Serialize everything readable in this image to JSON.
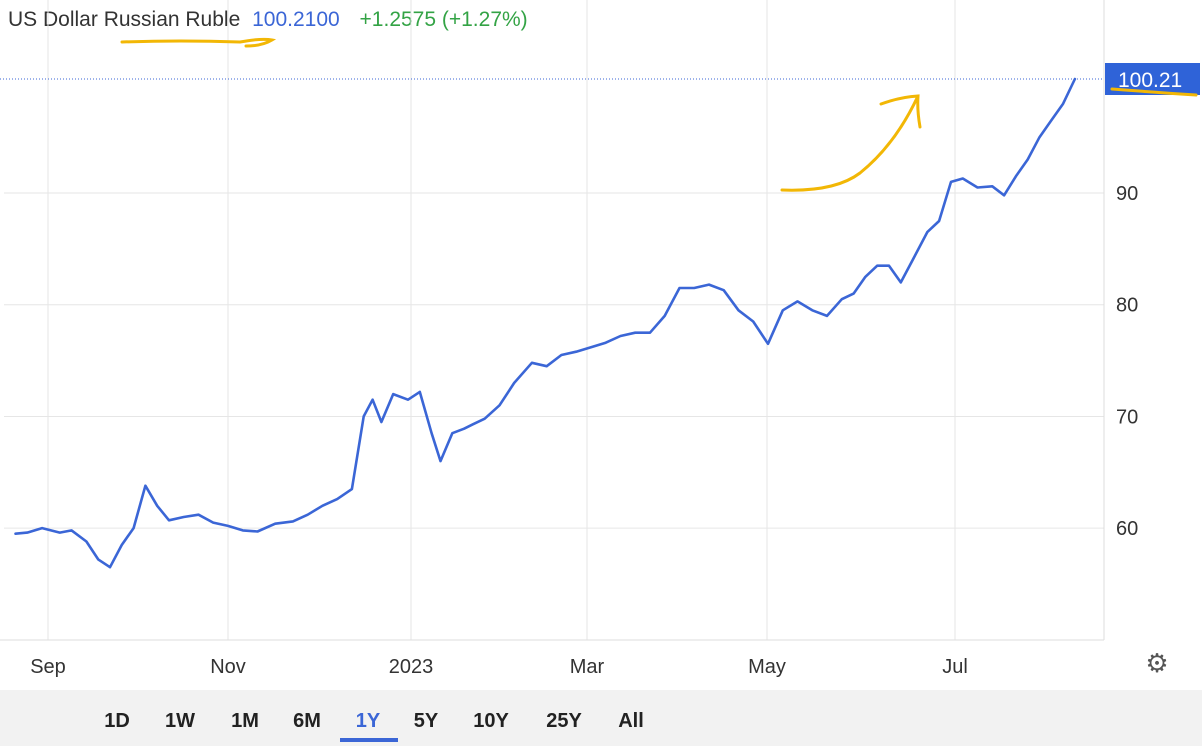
{
  "header": {
    "instrument_name": "US Dollar Russian Ruble",
    "last_price": "100.2100",
    "change": "+1.2575 (+1.27%)"
  },
  "timeframes": [
    "1D",
    "1W",
    "1M",
    "6M",
    "1Y",
    "5Y",
    "10Y",
    "25Y",
    "All"
  ],
  "active_timeframe": "1Y",
  "settings_icon": "gear-icon",
  "colors": {
    "line": "#3b66d6",
    "positive": "#33a345",
    "last_price_badge": "#2f63d8",
    "annotation": "#f2b705"
  },
  "chart_data": {
    "type": "line",
    "title": "",
    "xlabel": "",
    "ylabel": "",
    "x_ticks": [
      "Sep",
      "Nov",
      "2023",
      "Mar",
      "May",
      "Jul"
    ],
    "y_ticks": [
      "60",
      "70",
      "80",
      "90"
    ],
    "ylim": [
      49,
      106
    ],
    "last_value_label": "100.21",
    "grid": true,
    "series": [
      {
        "name": "",
        "x": [
          "2022-08-21",
          "2022-08-25",
          "2022-08-30",
          "2022-09-05",
          "2022-09-09",
          "2022-09-14",
          "2022-09-18",
          "2022-09-22",
          "2022-09-26",
          "2022-09-30",
          "2022-10-04",
          "2022-10-08",
          "2022-10-12",
          "2022-10-17",
          "2022-10-22",
          "2022-10-27",
          "2022-11-01",
          "2022-11-06",
          "2022-11-11",
          "2022-11-17",
          "2022-11-23",
          "2022-11-28",
          "2022-12-03",
          "2022-12-08",
          "2022-12-13",
          "2022-12-17",
          "2022-12-20",
          "2022-12-23",
          "2022-12-27",
          "2023-01-01",
          "2023-01-05",
          "2023-01-09",
          "2023-01-12",
          "2023-01-16",
          "2023-01-20",
          "2023-01-23",
          "2023-01-27",
          "2023-02-01",
          "2023-02-06",
          "2023-02-12",
          "2023-02-17",
          "2023-02-22",
          "2023-02-27",
          "2023-03-04",
          "2023-03-09",
          "2023-03-14",
          "2023-03-19",
          "2023-03-24",
          "2023-03-29",
          "2023-04-03",
          "2023-04-08",
          "2023-04-13",
          "2023-04-18",
          "2023-04-23",
          "2023-04-28",
          "2023-05-03",
          "2023-05-08",
          "2023-05-13",
          "2023-05-18",
          "2023-05-23",
          "2023-05-28",
          "2023-06-01",
          "2023-06-05",
          "2023-06-09",
          "2023-06-13",
          "2023-06-17",
          "2023-06-21",
          "2023-06-26",
          "2023-06-30",
          "2023-07-04",
          "2023-07-08",
          "2023-07-13",
          "2023-07-18",
          "2023-07-22",
          "2023-07-26",
          "2023-07-30",
          "2023-08-03",
          "2023-08-07",
          "2023-08-11",
          "2023-08-15"
        ],
        "values": [
          59.5,
          59.6,
          60.0,
          59.6,
          59.8,
          58.8,
          57.2,
          56.5,
          58.5,
          60.0,
          63.8,
          62.0,
          60.7,
          61.0,
          61.2,
          60.5,
          60.2,
          59.8,
          59.7,
          60.4,
          60.6,
          61.2,
          62.0,
          62.6,
          63.5,
          70.0,
          71.5,
          69.5,
          72.0,
          71.5,
          72.2,
          68.5,
          66.0,
          68.5,
          68.9,
          69.3,
          69.8,
          71.0,
          73.0,
          74.8,
          74.5,
          75.5,
          75.8,
          76.2,
          76.6,
          77.2,
          77.5,
          77.5,
          79.0,
          81.5,
          81.5,
          81.8,
          81.3,
          79.5,
          78.5,
          76.5,
          79.5,
          80.3,
          79.5,
          79.0,
          80.5,
          81.0,
          82.5,
          83.5,
          83.5,
          82.0,
          84.0,
          86.5,
          87.5,
          91.0,
          91.3,
          90.5,
          90.6,
          89.8,
          91.5,
          93.0,
          95.0,
          96.5,
          98.0,
          100.21
        ]
      }
    ]
  }
}
